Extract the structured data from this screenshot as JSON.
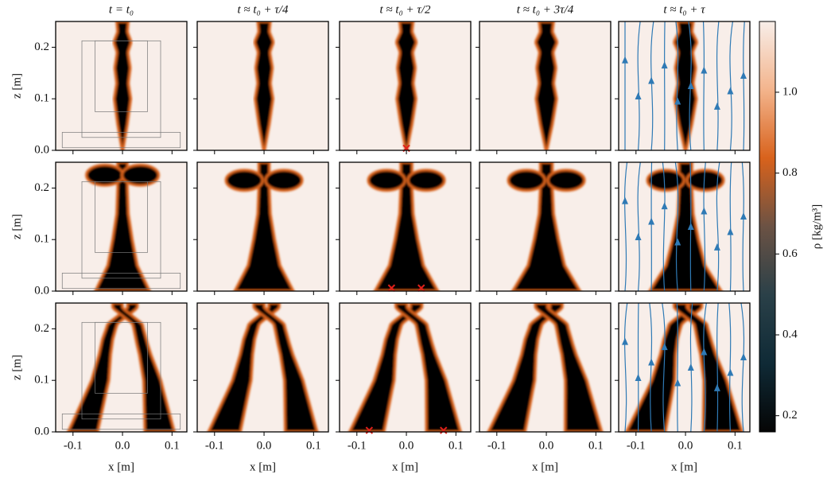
{
  "chart_data": {
    "type": "heatmap",
    "column_titles": [
      "t = t₀",
      "t ≈ t₀ + τ/4",
      "t ≈ t₀ + τ/2",
      "t ≈ t₀ + 3τ/4",
      "t ≈ t₀ + τ"
    ],
    "xlabel": "x [m]",
    "ylabel": "z [m]",
    "xlim": [
      -0.135,
      0.13
    ],
    "xticks": [
      -0.1,
      {
        "value": 0,
        "label": "0.0"
      },
      0.1
    ],
    "ylim": [
      0,
      0.25
    ],
    "yticks": [
      {
        "value": 0,
        "label": "0.0"
      },
      0.1,
      0.2
    ],
    "colorbar": {
      "label": "ρ [kg/m³]",
      "lim": [
        0.16,
        1.175
      ],
      "ticks": [
        0.2,
        0.4,
        0.6,
        0.8,
        {
          "value": 1,
          "label": "1.0"
        }
      ],
      "colormap": [
        "#050505",
        "#0f2a36",
        "#2a4048",
        "#6b5244",
        "#d8621c",
        "#f3b48c",
        "#f8eee9"
      ]
    },
    "markers": {
      "color": "#e0201a",
      "rows": [
        {
          "x": [
            0.0
          ],
          "y": [
            0.004
          ]
        },
        {
          "x": [
            -0.03,
            0.03
          ],
          "y": [
            0.006,
            0.006
          ]
        },
        {
          "x": [
            -0.075,
            0.075
          ],
          "y": [
            0.003,
            0.003
          ]
        }
      ]
    },
    "streamline_color": "#2f7ab5"
  }
}
